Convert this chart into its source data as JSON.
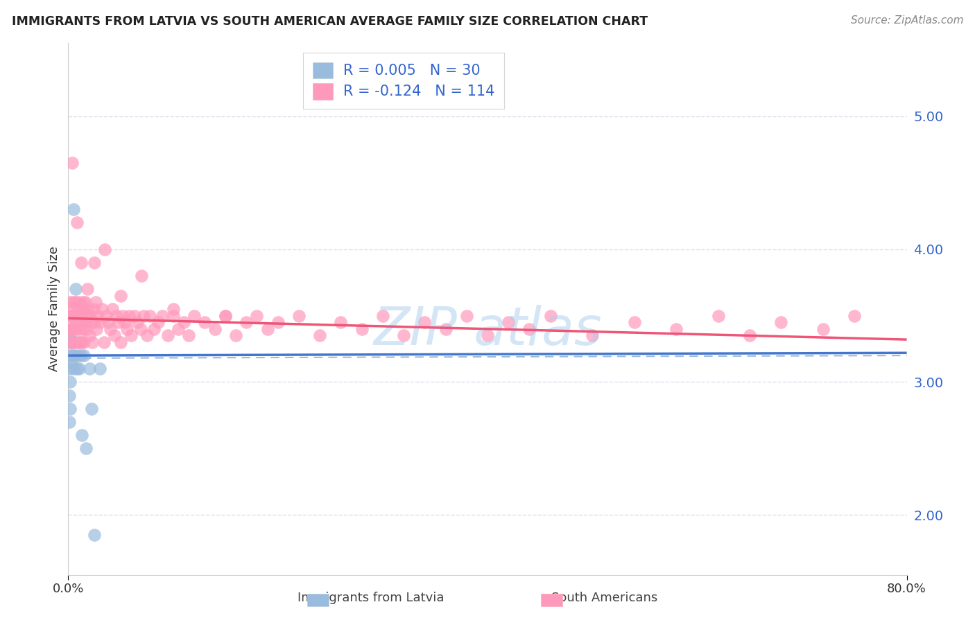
{
  "title": "IMMIGRANTS FROM LATVIA VS SOUTH AMERICAN AVERAGE FAMILY SIZE CORRELATION CHART",
  "source": "Source: ZipAtlas.com",
  "ylabel": "Average Family Size",
  "yticks": [
    2.0,
    3.0,
    4.0,
    5.0
  ],
  "xlim": [
    0.0,
    0.8
  ],
  "ylim": [
    1.55,
    5.55
  ],
  "legend_labels": [
    "Immigrants from Latvia",
    "South Americans"
  ],
  "latvia_R": "0.005",
  "latvia_N": "30",
  "south_R": "-0.124",
  "south_N": "114",
  "blue_scatter_color": "#99BBDD",
  "pink_scatter_color": "#FF99BB",
  "blue_line_color": "#4477CC",
  "pink_line_color": "#EE5577",
  "dashed_line_color": "#99BBDD",
  "watermark_color": "#AACCEE",
  "background_color": "#FFFFFF",
  "title_color": "#222222",
  "source_color": "#888888",
  "legend_value_color": "#3366CC",
  "axis_label_color": "#333333",
  "grid_color": "#DDDDEE",
  "tick_color": "#3366CC",
  "latvia_x": [
    0.001,
    0.001,
    0.001,
    0.001,
    0.002,
    0.002,
    0.002,
    0.002,
    0.003,
    0.003,
    0.003,
    0.004,
    0.004,
    0.005,
    0.005,
    0.006,
    0.006,
    0.007,
    0.008,
    0.009,
    0.01,
    0.011,
    0.012,
    0.013,
    0.015,
    0.017,
    0.02,
    0.022,
    0.025,
    0.03
  ],
  "latvia_y": [
    3.3,
    3.1,
    2.9,
    2.7,
    3.2,
    3.0,
    2.8,
    3.35,
    3.4,
    3.15,
    3.5,
    3.2,
    3.3,
    3.1,
    4.3,
    3.2,
    3.3,
    3.7,
    3.1,
    3.2,
    3.1,
    3.3,
    3.2,
    2.6,
    3.2,
    2.5,
    3.1,
    2.8,
    1.85,
    3.1
  ],
  "south_x": [
    0.001,
    0.001,
    0.002,
    0.002,
    0.003,
    0.003,
    0.004,
    0.004,
    0.005,
    0.005,
    0.006,
    0.006,
    0.007,
    0.007,
    0.008,
    0.008,
    0.009,
    0.009,
    0.01,
    0.01,
    0.011,
    0.011,
    0.012,
    0.012,
    0.013,
    0.013,
    0.014,
    0.014,
    0.015,
    0.015,
    0.016,
    0.016,
    0.017,
    0.018,
    0.019,
    0.02,
    0.021,
    0.022,
    0.023,
    0.024,
    0.025,
    0.026,
    0.027,
    0.028,
    0.03,
    0.032,
    0.034,
    0.036,
    0.038,
    0.04,
    0.042,
    0.044,
    0.046,
    0.048,
    0.05,
    0.052,
    0.054,
    0.056,
    0.058,
    0.06,
    0.063,
    0.066,
    0.069,
    0.072,
    0.075,
    0.078,
    0.082,
    0.086,
    0.09,
    0.095,
    0.1,
    0.105,
    0.11,
    0.115,
    0.12,
    0.13,
    0.14,
    0.15,
    0.16,
    0.17,
    0.18,
    0.19,
    0.2,
    0.22,
    0.24,
    0.26,
    0.28,
    0.3,
    0.32,
    0.34,
    0.36,
    0.38,
    0.4,
    0.42,
    0.44,
    0.46,
    0.5,
    0.54,
    0.58,
    0.62,
    0.65,
    0.68,
    0.72,
    0.75,
    0.004,
    0.008,
    0.012,
    0.018,
    0.025,
    0.035,
    0.05,
    0.07,
    0.1,
    0.15
  ],
  "south_y": [
    3.4,
    3.5,
    3.3,
    3.6,
    3.5,
    3.4,
    3.3,
    3.55,
    3.6,
    3.4,
    3.5,
    3.3,
    3.45,
    3.6,
    3.5,
    3.4,
    3.55,
    3.3,
    3.5,
    3.6,
    3.4,
    3.3,
    3.55,
    3.45,
    3.5,
    3.3,
    3.6,
    3.4,
    3.55,
    3.3,
    3.45,
    3.6,
    3.4,
    3.5,
    3.55,
    3.35,
    3.5,
    3.45,
    3.3,
    3.55,
    3.45,
    3.6,
    3.4,
    3.5,
    3.45,
    3.55,
    3.3,
    3.5,
    3.45,
    3.4,
    3.55,
    3.35,
    3.5,
    3.45,
    3.3,
    3.5,
    3.45,
    3.4,
    3.5,
    3.35,
    3.5,
    3.45,
    3.4,
    3.5,
    3.35,
    3.5,
    3.4,
    3.45,
    3.5,
    3.35,
    3.5,
    3.4,
    3.45,
    3.35,
    3.5,
    3.45,
    3.4,
    3.5,
    3.35,
    3.45,
    3.5,
    3.4,
    3.45,
    3.5,
    3.35,
    3.45,
    3.4,
    3.5,
    3.35,
    3.45,
    3.4,
    3.5,
    3.35,
    3.45,
    3.4,
    3.5,
    3.35,
    3.45,
    3.4,
    3.5,
    3.35,
    3.45,
    3.4,
    3.5,
    4.65,
    4.2,
    3.9,
    3.7,
    3.9,
    4.0,
    3.65,
    3.8,
    3.55,
    3.5
  ]
}
